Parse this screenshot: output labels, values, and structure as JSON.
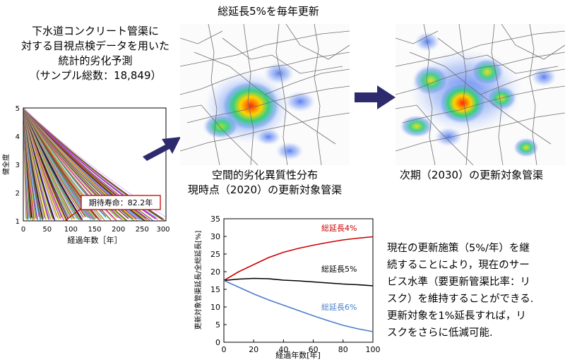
{
  "study": {
    "title_lines": [
      "下水道コンクリート管渠に",
      "対する目視点検データを用いた",
      "統計的劣化予測",
      "（サンプル総数：18,849）"
    ]
  },
  "deterioration_plot": {
    "ylabel": "健全度",
    "xlabel": "経過年数［年］",
    "x_ticks": [
      "0",
      "50",
      "100",
      "150",
      "200",
      "250",
      "300"
    ],
    "y_ticks": [
      "1",
      "2",
      "3",
      "4",
      "5"
    ],
    "annotation": "期待寿命：82.2年"
  },
  "maps": {
    "top_label": "総延長5%を毎年更新",
    "current_caption_lines": [
      "空間的劣化異質性分布",
      "現時点（2020）の更新対象管渠"
    ],
    "next_caption": "次期（2030）の更新対象管渠"
  },
  "colors": {
    "arrow": "#2e2a6e",
    "red": "#cc0000",
    "black": "#000000",
    "blue": "#4a7ec9"
  },
  "chart_data": {
    "type": "line",
    "xlabel": "経過年数[年]",
    "ylabel": "更新対象管渠延長/全総延長[%]",
    "xlim": [
      0,
      100
    ],
    "ylim": [
      0,
      35
    ],
    "x_ticks": [
      0,
      20,
      40,
      60,
      80,
      100
    ],
    "y_ticks": [
      0,
      5,
      10,
      15,
      20,
      25,
      30,
      35
    ],
    "grid": false,
    "x": [
      0,
      10,
      20,
      30,
      40,
      50,
      60,
      70,
      80,
      90,
      100
    ],
    "series": [
      {
        "name": "総延長4%",
        "color": "#cc0000",
        "values": [
          17.5,
          20.0,
          22.0,
          24.0,
          25.5,
          26.6,
          27.5,
          28.3,
          29.0,
          29.5,
          29.9
        ]
      },
      {
        "name": "総延長5%",
        "color": "#000000",
        "values": [
          17.5,
          17.9,
          18.1,
          18.0,
          17.6,
          17.4,
          17.1,
          16.8,
          16.5,
          16.3,
          16.0
        ]
      },
      {
        "name": "総延長6%",
        "color": "#4a7ec9",
        "values": [
          17.5,
          15.6,
          13.7,
          12.0,
          10.5,
          9.0,
          7.5,
          6.1,
          4.8,
          3.8,
          3.0
        ]
      }
    ]
  },
  "conclusion_lines": [
    "現在の更新施策（5%/年）を継",
    "続することにより，現在のサー",
    "ビス水準（要更新管渠比率：リ",
    "スク）を維持することができる.",
    "更新対象を1%延長すれば，リ",
    "スクをさらに低減可能."
  ]
}
